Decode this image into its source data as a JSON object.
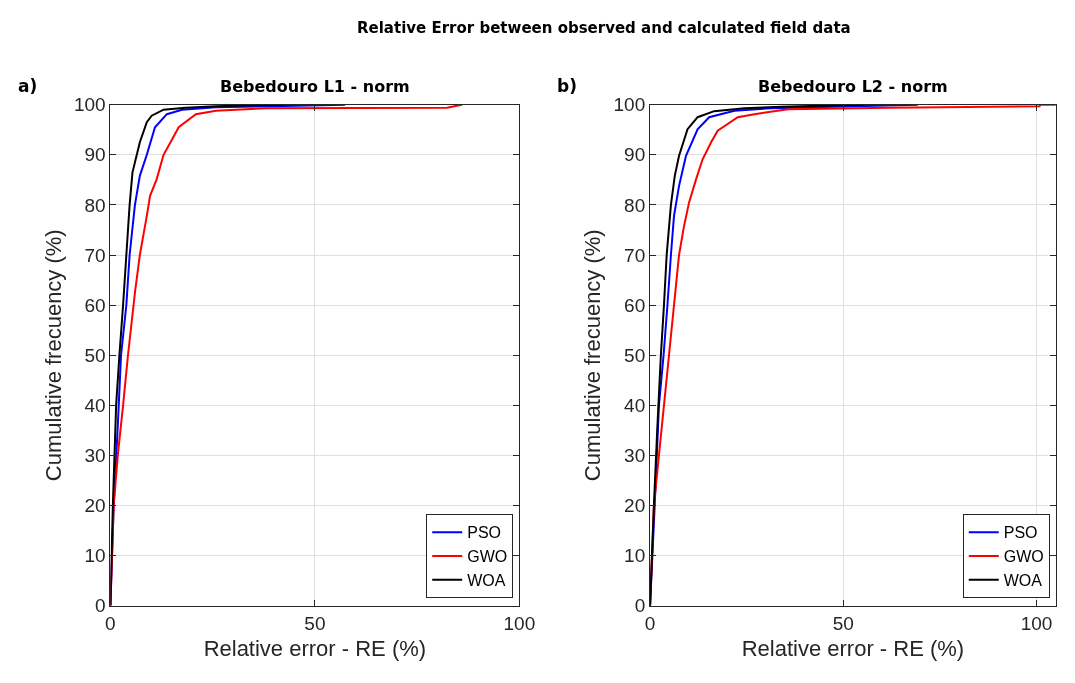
{
  "chart_data": [
    {
      "type": "line",
      "title": "Bebedouro L1 - norm",
      "xlabel": "Relative error - RE (%)",
      "ylabel": "Cumulative frecuency (%)",
      "annotations": [
        "Relative Error between observed and calculated field data",
        "a)"
      ],
      "xlim": [
        0,
        100
      ],
      "ylim": [
        0,
        100
      ],
      "xticks": [
        0,
        50,
        100
      ],
      "yticks": [
        0,
        10,
        20,
        30,
        40,
        50,
        60,
        70,
        80,
        90,
        100
      ],
      "grid": true,
      "legend": "bottom right",
      "line_style": "solid",
      "series": [
        {
          "name": "PSO",
          "color": "#0000ff",
          "x": [
            0,
            0.8,
            1.8,
            2.6,
            3.9,
            4.7,
            6,
            7.2,
            8.9,
            10.9,
            13.8,
            17.5,
            25.8,
            40,
            57.4
          ],
          "values": [
            0,
            20,
            35.8,
            50,
            60,
            70,
            80,
            85.8,
            90,
            95.5,
            98.1,
            99,
            99.5,
            99.7,
            100
          ]
        },
        {
          "name": "GWO",
          "color": "#ff0000",
          "x": [
            0,
            0.8,
            1.8,
            3.1,
            4.3,
            6,
            7.2,
            8.9,
            9.7,
            11.3,
            13,
            14.7,
            16.7,
            20.9,
            25.8,
            38.2,
            82.3,
            86
          ],
          "values": [
            0,
            20,
            30,
            40,
            50,
            62.5,
            70,
            77.8,
            81.8,
            85.1,
            90,
            92.5,
            95.5,
            98.1,
            98.8,
            99.3,
            99.4,
            100
          ]
        },
        {
          "name": "WOA",
          "color": "#000000",
          "x": [
            0,
            0.6,
            1.4,
            2.2,
            3.1,
            3.9,
            4.7,
            5.4,
            7.2,
            8.9,
            10.1,
            13,
            18.4,
            25.8,
            42.4
          ],
          "values": [
            0,
            20,
            40,
            50,
            60,
            70,
            80,
            86.5,
            92.5,
            96.5,
            97.8,
            99,
            99.4,
            99.7,
            100
          ]
        }
      ]
    },
    {
      "type": "line",
      "title": "Bebedouro L2 - norm",
      "xlabel": "Relative error - RE (%)",
      "ylabel": "Cumulative frecuency (%)",
      "annotations": [
        "b)"
      ],
      "xlim": [
        0,
        105
      ],
      "ylim": [
        0,
        100
      ],
      "xticks": [
        0,
        50,
        100
      ],
      "yticks": [
        0,
        10,
        20,
        30,
        40,
        50,
        60,
        70,
        80,
        90,
        100
      ],
      "grid": true,
      "legend": "bottom right",
      "line_style": "solid",
      "series": [
        {
          "name": "PSO",
          "color": "#0000ff",
          "x": [
            0,
            1.2,
            2.3,
            3.5,
            4.5,
            5.4,
            6.2,
            7.5,
            9.3,
            12.3,
            15.3,
            21.8,
            31.4,
            69.3
          ],
          "values": [
            0,
            20,
            40,
            50,
            60,
            70,
            77.8,
            83.8,
            89.8,
            95.1,
            97.5,
            98.8,
            99.3,
            100
          ]
        },
        {
          "name": "GWO",
          "color": "#ff0000",
          "x": [
            0,
            1,
            2.3,
            3.6,
            4.9,
            6.2,
            7.5,
            8.8,
            10.1,
            11.9,
            13.6,
            15.8,
            17.5,
            22.7,
            27,
            35.7,
            62.3,
            100.8,
            101,
            105
          ],
          "values": [
            0,
            20,
            30,
            40,
            50,
            60,
            70,
            75.8,
            80.5,
            85.1,
            89.1,
            92.5,
            94.8,
            97.5,
            98.1,
            99.1,
            99.4,
            99.7,
            100,
            100
          ]
        },
        {
          "name": "WOA",
          "color": "#000000",
          "x": [
            0,
            1,
            1.9,
            2.8,
            3.6,
            4.3,
            5.4,
            6.4,
            7.5,
            9.7,
            12.3,
            16.6,
            24.4,
            34,
            55.3
          ],
          "values": [
            0,
            20,
            35.8,
            50,
            60,
            70,
            80,
            85.8,
            89.8,
            95.1,
            97.5,
            98.7,
            99.3,
            99.6,
            100
          ]
        }
      ]
    }
  ]
}
